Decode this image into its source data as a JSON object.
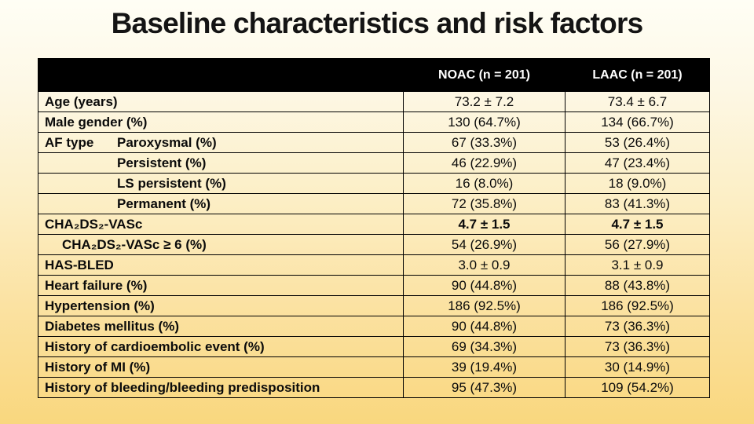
{
  "slide": {
    "title": "Baseline characteristics and risk factors",
    "background_top_color": "#fffef5",
    "background_bottom_color": "#f9d77e",
    "header_bg_color": "#000000",
    "header_text_color": "#ffffff",
    "border_color": "#000000"
  },
  "table": {
    "header": {
      "label_col": "",
      "columns": [
        "NOAC (n = 201)",
        "LAAC (n = 201)"
      ]
    },
    "rows": [
      {
        "label": "Age (years)",
        "indent": 0,
        "values": [
          "73.2 ± 7.2",
          "73.4 ± 6.7"
        ]
      },
      {
        "label": "Male gender (%)",
        "indent": 0,
        "values": [
          "130 (64.7%)",
          "134 (66.7%)"
        ]
      },
      {
        "prefix": "AF type",
        "label": "Paroxysmal (%)",
        "indent": 2,
        "values": [
          "67 (33.3%)",
          "53 (26.4%)"
        ]
      },
      {
        "label": "Persistent (%)",
        "indent": 2,
        "values": [
          "46 (22.9%)",
          "47 (23.4%)"
        ]
      },
      {
        "label": "LS persistent (%)",
        "indent": 2,
        "values": [
          "16 (8.0%)",
          "18 (9.0%)"
        ]
      },
      {
        "label": "Permanent (%)",
        "indent": 2,
        "values": [
          "72 (35.8%)",
          "83 (41.3%)"
        ]
      },
      {
        "label": "CHA₂DS₂-VASc",
        "indent": 0,
        "bold_values": true,
        "values": [
          "4.7 ± 1.5",
          "4.7 ± 1.5"
        ]
      },
      {
        "label": "CHA₂DS₂-VASc ≥ 6 (%)",
        "indent": 1,
        "values": [
          "54 (26.9%)",
          "56 (27.9%)"
        ]
      },
      {
        "label": "HAS-BLED",
        "indent": 0,
        "values": [
          "3.0 ± 0.9",
          "3.1 ± 0.9"
        ]
      },
      {
        "label": "Heart failure (%)",
        "indent": 0,
        "values": [
          "90 (44.8%)",
          "88 (43.8%)"
        ]
      },
      {
        "label": "Hypertension (%)",
        "indent": 0,
        "values": [
          "186 (92.5%)",
          "186 (92.5%)"
        ]
      },
      {
        "label": "Diabetes mellitus (%)",
        "indent": 0,
        "values": [
          "90 (44.8%)",
          "73 (36.3%)"
        ]
      },
      {
        "label": "History of cardioembolic event (%)",
        "indent": 0,
        "values": [
          "69 (34.3%)",
          "73 (36.3%)"
        ]
      },
      {
        "label": "History of MI (%)",
        "indent": 0,
        "values": [
          "39 (19.4%)",
          "30 (14.9%)"
        ]
      },
      {
        "label": "History of bleeding/bleeding predisposition",
        "indent": 0,
        "values": [
          "95 (47.3%)",
          "109 (54.2%)"
        ]
      }
    ]
  }
}
